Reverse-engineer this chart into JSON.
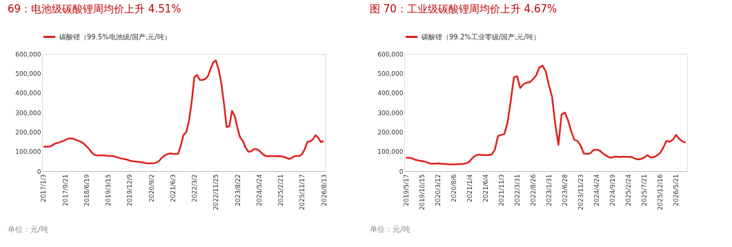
{
  "chart_data": [
    {
      "type": "line",
      "title": "69：电池级碳酸锂周均价上升 4.51%",
      "annotations": [
        "单位：元/吨"
      ],
      "legend": "top",
      "grid": false,
      "line_style": "solid",
      "marker": "none",
      "categories": [
        "2017/1/3",
        null,
        null,
        null,
        null,
        null,
        null,
        null,
        "2017/9/21",
        null,
        null,
        null,
        null,
        null,
        null,
        null,
        "2018/6/19",
        null,
        null,
        null,
        null,
        null,
        null,
        null,
        "2019/3/15",
        null,
        null,
        null,
        null,
        null,
        null,
        null,
        "2019/12/9",
        null,
        null,
        null,
        null,
        null,
        null,
        null,
        "2020/9/2",
        null,
        null,
        null,
        null,
        null,
        null,
        null,
        "2021/6/3",
        null,
        null,
        null,
        null,
        null,
        null,
        null,
        "2022/3/2",
        null,
        null,
        null,
        null,
        null,
        null,
        null,
        "2022/11/25",
        null,
        null,
        null,
        null,
        null,
        null,
        null,
        "2023/8/22",
        null,
        null,
        null,
        null,
        null,
        null,
        null,
        "2024/5/24",
        null,
        null,
        null,
        null,
        null,
        null,
        null,
        "2025/2/21",
        null,
        null,
        null,
        null,
        null,
        null,
        null,
        "2025/11/17",
        null,
        null,
        null,
        null,
        null,
        null,
        null,
        "2026/8/13"
      ],
      "ylim": [
        0,
        600000
      ],
      "yticks": [
        {
          "value": 0,
          "label": "0"
        },
        {
          "value": 100000,
          "label": "100,000"
        },
        {
          "value": 200000,
          "label": "200,000"
        },
        {
          "value": 300000,
          "label": "300,000"
        },
        {
          "value": 400000,
          "label": "400,000"
        },
        {
          "value": 500000,
          "label": "500,000"
        },
        {
          "value": 600000,
          "label": "600,000"
        }
      ],
      "series": [
        {
          "name": "碳酸锂（99.5%电池级/国产,元/吨）",
          "color": "#e0201b",
          "values": [
            125000,
            125000,
            125000,
            129000,
            138000,
            144000,
            147000,
            153000,
            158000,
            165000,
            168000,
            166000,
            160000,
            155000,
            150000,
            140000,
            127000,
            112000,
            94000,
            83000,
            80000,
            80000,
            80000,
            80000,
            78000,
            78000,
            77000,
            72000,
            68000,
            64000,
            62000,
            59000,
            54000,
            51000,
            49000,
            48000,
            46000,
            44000,
            41000,
            40000,
            40000,
            41000,
            44000,
            53000,
            69000,
            80000,
            87000,
            90000,
            88000,
            88000,
            88000,
            132000,
            185000,
            200000,
            255000,
            350000,
            480000,
            492000,
            467000,
            466000,
            471000,
            484000,
            521000,
            556000,
            566000,
            522000,
            452000,
            348000,
            225000,
            230000,
            308000,
            282000,
            222000,
            172000,
            155000,
            122000,
            100000,
            100000,
            112000,
            112000,
            106000,
            92000,
            81000,
            76000,
            77000,
            77000,
            76000,
            77000,
            76000,
            74000,
            69000,
            63000,
            65000,
            75000,
            78000,
            77000,
            87000,
            112000,
            150000,
            152000,
            162000,
            184000,
            171000,
            148000,
            155000
          ]
        }
      ]
    },
    {
      "type": "line",
      "title": "图 70：工业级碳酸锂周均价上升 4.67%",
      "annotations": [
        "单位：元/吨"
      ],
      "legend": "top",
      "grid": false,
      "line_style": "solid",
      "marker": "none",
      "categories": [
        "2019/5/17",
        null,
        null,
        null,
        null,
        "2019/10/15",
        null,
        null,
        null,
        null,
        "2020/3/12",
        null,
        null,
        null,
        null,
        "2020/8/6",
        null,
        null,
        null,
        null,
        "2021/1/4",
        null,
        null,
        null,
        null,
        "2021/6/4",
        null,
        null,
        null,
        null,
        "2021/11/3",
        null,
        null,
        null,
        null,
        "2022/3/31",
        null,
        null,
        null,
        null,
        "2022/8/26",
        null,
        null,
        null,
        null,
        "2023/1/31",
        null,
        null,
        null,
        null,
        "2023/6/28",
        null,
        null,
        null,
        null,
        "2023/11/23",
        null,
        null,
        null,
        null,
        "2024/4/24",
        null,
        null,
        null,
        null,
        "2024/9/19",
        null,
        null,
        null,
        null,
        "2025/2/24",
        null,
        null,
        null,
        null,
        "2025/7/21",
        null,
        null,
        null,
        null,
        "2025/12/16",
        null,
        null,
        null,
        null,
        "2026/5/21",
        null,
        null,
        null
      ],
      "ylim": [
        0,
        600000
      ],
      "yticks": [
        {
          "value": 0,
          "label": "0"
        },
        {
          "value": 100000,
          "label": "100,000"
        },
        {
          "value": 200000,
          "label": "200,000"
        },
        {
          "value": 300000,
          "label": "300,000"
        },
        {
          "value": 400000,
          "label": "400,000"
        },
        {
          "value": 500000,
          "label": "500,000"
        },
        {
          "value": 600000,
          "label": "600,000"
        }
      ],
      "series": [
        {
          "name": "碳酸锂（99.2%工业零级/国产,元/吨）",
          "color": "#e0201b",
          "values": [
            68000,
            68000,
            65000,
            58000,
            54000,
            52000,
            48000,
            42000,
            38000,
            38000,
            40000,
            38000,
            37000,
            35000,
            34000,
            34000,
            35000,
            36000,
            37000,
            40000,
            48000,
            68000,
            80000,
            85000,
            82000,
            82000,
            82000,
            85000,
            110000,
            180000,
            185000,
            190000,
            250000,
            360000,
            480000,
            485000,
            425000,
            445000,
            452000,
            455000,
            470000,
            490000,
            530000,
            540000,
            510000,
            440000,
            380000,
            240000,
            135000,
            290000,
            300000,
            260000,
            205000,
            160000,
            155000,
            130000,
            90000,
            88000,
            90000,
            108000,
            110000,
            105000,
            90000,
            80000,
            70000,
            70000,
            75000,
            72000,
            73000,
            73000,
            72000,
            72000,
            65000,
            60000,
            62000,
            70000,
            82000,
            70000,
            72000,
            80000,
            93000,
            120000,
            155000,
            150000,
            160000,
            185000,
            165000,
            152000,
            145000
          ]
        }
      ]
    }
  ]
}
